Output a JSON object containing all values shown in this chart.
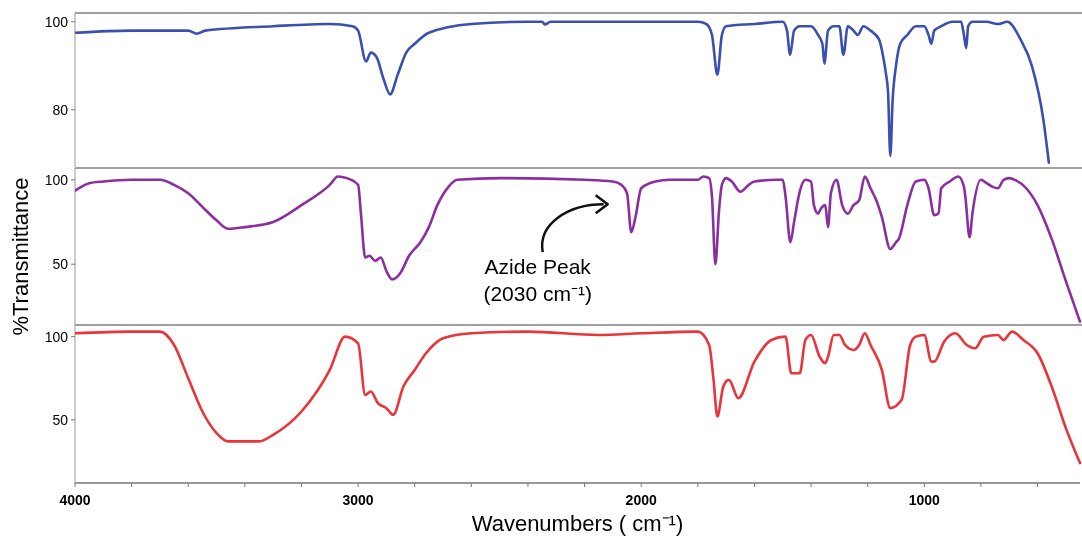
{
  "chart_data": [
    {
      "type": "line",
      "xlim": [
        4000,
        450
      ],
      "ylim": [
        67,
        102
      ],
      "yticks": [
        80,
        100
      ],
      "tick_labels": "y",
      "x": [
        4000,
        3800,
        3600,
        3570,
        3540,
        3300,
        3100,
        3020,
        3000,
        2972,
        2955,
        2935,
        2910,
        2887,
        2860,
        2830,
        2800,
        2750,
        2600,
        2400,
        2350,
        2340,
        2320,
        2000,
        1800,
        1770,
        1750,
        1731,
        1715,
        1700,
        1600,
        1500,
        1485,
        1474,
        1460,
        1440,
        1400,
        1375,
        1360,
        1353,
        1340,
        1320,
        1300,
        1286,
        1270,
        1250,
        1235,
        1215,
        1190,
        1160,
        1145,
        1135,
        1128,
        1120,
        1112,
        1100,
        1085,
        1060,
        1030,
        1000,
        985,
        975,
        965,
        940,
        900,
        870,
        860,
        852,
        845,
        830,
        780,
        740,
        707,
        660,
        620,
        580,
        560
      ],
      "series": [
        {
          "color": "#3a4fb0",
          "values": [
            97.5,
            98,
            98,
            97.3,
            98,
            99,
            99.5,
            99,
            98,
            91,
            93,
            92,
            87,
            83.5,
            88,
            93,
            95,
            97.5,
            99.5,
            100,
            100,
            99.4,
            100,
            100,
            100,
            99.5,
            97,
            88,
            97,
            99,
            99.5,
            100,
            98,
            92.5,
            98,
            99,
            99,
            97,
            95,
            90.5,
            98,
            99,
            99,
            92.5,
            99,
            98,
            97,
            99,
            98,
            96,
            92,
            88,
            84,
            69.5,
            82,
            90,
            95,
            97,
            99,
            99,
            97,
            95,
            98,
            99,
            100,
            100,
            97,
            94,
            99,
            100,
            100,
            99.5,
            100,
            96,
            90,
            78,
            68
          ]
        }
      ]
    },
    {
      "type": "line",
      "xlim": [
        4000,
        450
      ],
      "ylim": [
        14,
        107
      ],
      "yticks": [
        50,
        100
      ],
      "tick_labels": "y",
      "ylabel": "%Transmittance",
      "annotations": [
        {
          "text": "Azide Peak\n(2030 cm⁻¹)",
          "x": 2030,
          "y": 69
        }
      ],
      "x": [
        4000,
        3950,
        3900,
        3800,
        3700,
        3650,
        3600,
        3550,
        3500,
        3459,
        3400,
        3300,
        3200,
        3100,
        3071,
        3040,
        3000,
        2990,
        2975,
        2960,
        2940,
        2920,
        2900,
        2880,
        2850,
        2820,
        2780,
        2750,
        2720,
        2680,
        2650,
        2500,
        2200,
        2100,
        2070,
        2050,
        2035,
        2020,
        2000,
        1950,
        1900,
        1800,
        1780,
        1760,
        1750,
        1738,
        1725,
        1715,
        1700,
        1680,
        1650,
        1620,
        1600,
        1520,
        1500,
        1490,
        1473,
        1460,
        1440,
        1420,
        1400,
        1390,
        1375,
        1365,
        1350,
        1340,
        1330,
        1310,
        1290,
        1270,
        1250,
        1230,
        1210,
        1190,
        1170,
        1150,
        1120,
        1100,
        1090,
        1060,
        1030,
        1000,
        985,
        965,
        950,
        940,
        910,
        880,
        860,
        855,
        840,
        830,
        800,
        780,
        760,
        740,
        720,
        700,
        680,
        640,
        600,
        550,
        500,
        450
      ],
      "series": [
        {
          "color": "#8b2fa0",
          "values": [
            93.5,
            98,
            99,
            100,
            100,
            97,
            92,
            84,
            76,
            71,
            72,
            75,
            85,
            97,
            102,
            101,
            97,
            80,
            54,
            55,
            52,
            54,
            46,
            41,
            45,
            55,
            63,
            72,
            85,
            96,
            100,
            101,
            100,
            99,
            97,
            92,
            69,
            78,
            95,
            99,
            100,
            100,
            102,
            101,
            90,
            50,
            82,
            97,
            101,
            99,
            93,
            97,
            99,
            100,
            100,
            90,
            63,
            75,
            93,
            100,
            99,
            85,
            80,
            83,
            85,
            72,
            92,
            100,
            85,
            80,
            85,
            88,
            102,
            95,
            88,
            78,
            59,
            63,
            65,
            85,
            99,
            100,
            95,
            79,
            80,
            95,
            99,
            102,
            96,
            90,
            66,
            80,
            100,
            98,
            96,
            95,
            100,
            101,
            100,
            95,
            85,
            65,
            40,
            16
          ]
        }
      ]
    },
    {
      "type": "line",
      "xlim": [
        4000,
        450
      ],
      "ylim": [
        12,
        107
      ],
      "yticks": [
        50,
        100
      ],
      "xlabel": "Wavenumbers ( cm⁻¹)",
      "xticks": [
        4000,
        {
          "value": 3800,
          "label": null
        },
        {
          "value": 3600,
          "label": null
        },
        {
          "value": 3400,
          "label": null
        },
        {
          "value": 3200,
          "label": null
        },
        3000,
        {
          "value": 2800,
          "label": null
        },
        {
          "value": 2600,
          "label": null
        },
        {
          "value": 2400,
          "label": null
        },
        {
          "value": 2200,
          "label": null
        },
        2000,
        {
          "value": 1800,
          "label": null
        },
        {
          "value": 1600,
          "label": null
        },
        {
          "value": 1400,
          "label": null
        },
        {
          "value": 1200,
          "label": null
        },
        1000,
        {
          "value": 800,
          "label": null
        },
        {
          "value": 600,
          "label": null
        }
      ],
      "x": [
        4000,
        3800,
        3700,
        3650,
        3600,
        3550,
        3500,
        3459,
        3400,
        3350,
        3300,
        3200,
        3100,
        3046,
        3000,
        2975,
        2955,
        2930,
        2900,
        2876,
        2840,
        2800,
        2760,
        2700,
        2600,
        2400,
        2150,
        2000,
        1800,
        1760,
        1745,
        1731,
        1710,
        1690,
        1657,
        1600,
        1540,
        1490,
        1470,
        1440,
        1420,
        1400,
        1370,
        1350,
        1340,
        1320,
        1300,
        1280,
        1250,
        1230,
        1210,
        1190,
        1150,
        1120,
        1080,
        1050,
        1030,
        1000,
        975,
        965,
        930,
        890,
        850,
        820,
        790,
        740,
        720,
        690,
        650,
        600,
        550,
        500,
        450
      ],
      "series": [
        {
          "color": "#e8343a",
          "values": [
            102,
            103,
            103,
            95,
            75,
            55,
            42,
            37,
            37,
            37,
            41,
            55,
            80,
            100,
            96,
            65,
            67,
            60,
            57,
            53,
            70,
            80,
            90,
            99,
            102,
            103,
            101,
            102,
            103,
            95,
            75,
            52,
            70,
            74,
            63,
            85,
            98,
            100,
            78,
            78,
            98,
            101,
            88,
            84,
            88,
            101,
            101,
            95,
            92,
            95,
            102,
            95,
            80,
            57,
            62,
            95,
            100,
            101,
            85,
            85,
            97,
            102,
            95,
            93,
            100,
            101,
            98,
            103,
            98,
            90,
            70,
            45,
            24
          ]
        }
      ]
    }
  ]
}
